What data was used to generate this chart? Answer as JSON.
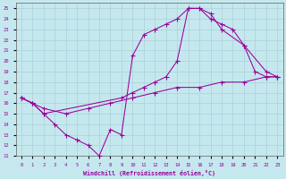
{
  "xlabel": "Windchill (Refroidissement éolien,°C)",
  "bg_color": "#c5e8ef",
  "grid_color": "#aed4dc",
  "line_color": "#990099",
  "xlim": [
    -0.5,
    23.5
  ],
  "ylim": [
    11,
    25.5
  ],
  "xticks": [
    0,
    1,
    2,
    3,
    4,
    5,
    6,
    7,
    8,
    9,
    10,
    11,
    12,
    13,
    14,
    15,
    16,
    17,
    18,
    19,
    20,
    21,
    22,
    23
  ],
  "yticks": [
    11,
    12,
    13,
    14,
    15,
    16,
    17,
    18,
    19,
    20,
    21,
    22,
    23,
    24,
    25
  ],
  "curve1_x": [
    0,
    1,
    2,
    3,
    4,
    5,
    6,
    7,
    8,
    9,
    10,
    11,
    12,
    13,
    14,
    15,
    16,
    17,
    18,
    19,
    20,
    21,
    22,
    23
  ],
  "curve1_y": [
    16.5,
    16.0,
    15.0,
    14.0,
    13.0,
    12.5,
    12.0,
    11.0,
    13.5,
    13.0,
    20.5,
    22.5,
    23.0,
    23.5,
    24.0,
    25.0,
    25.0,
    24.0,
    23.5,
    23.0,
    21.5,
    19.0,
    18.5,
    18.5
  ],
  "curve2_x": [
    0,
    1,
    2,
    9,
    10,
    11,
    12,
    13,
    14,
    15,
    16,
    17,
    18,
    20,
    22,
    23
  ],
  "curve2_y": [
    16.5,
    16.0,
    15.0,
    16.5,
    17.0,
    17.5,
    18.0,
    18.5,
    20.0,
    25.0,
    25.0,
    24.5,
    23.0,
    21.5,
    19.0,
    18.5
  ],
  "curve3_x": [
    0,
    1,
    2,
    4,
    6,
    8,
    10,
    12,
    14,
    16,
    18,
    20,
    22,
    23
  ],
  "curve3_y": [
    16.5,
    16.0,
    15.5,
    15.0,
    15.5,
    16.0,
    16.5,
    17.0,
    17.5,
    17.5,
    18.0,
    18.0,
    18.5,
    18.5
  ]
}
